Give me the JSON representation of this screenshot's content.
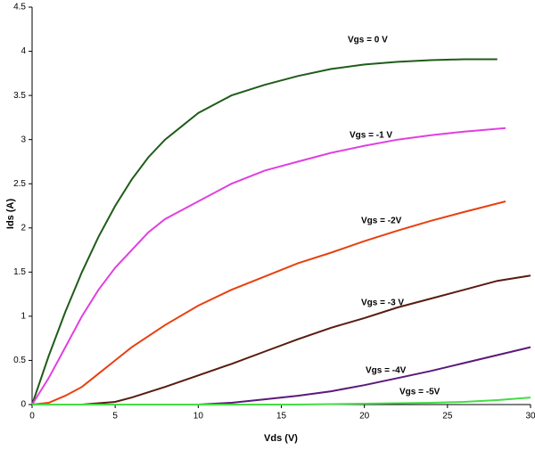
{
  "chart_data": {
    "type": "line",
    "x_label": "Vds (V)",
    "y_label": "Ids (A)",
    "xlim": [
      0,
      30
    ],
    "ylim": [
      0,
      4.5
    ],
    "xticks": [
      0,
      5,
      10,
      15,
      20,
      25,
      30
    ],
    "yticks": [
      0,
      0.5,
      1,
      1.5,
      2,
      2.5,
      3,
      3.5,
      4,
      4.5
    ],
    "series": [
      {
        "name": "Vgs = 0 V",
        "color": "#1f5c1a",
        "x": [
          0,
          1,
          2,
          3,
          4,
          5,
          6,
          7,
          8,
          9,
          10,
          12,
          14,
          16,
          18,
          20,
          22,
          24,
          26,
          28
        ],
        "values": [
          0,
          0.55,
          1.05,
          1.5,
          1.9,
          2.25,
          2.55,
          2.8,
          3.0,
          3.15,
          3.3,
          3.5,
          3.62,
          3.72,
          3.8,
          3.85,
          3.88,
          3.9,
          3.91,
          3.91
        ]
      },
      {
        "name": "Vgs = -1 V",
        "color": "#e040e0",
        "x": [
          0,
          1,
          2,
          3,
          4,
          5,
          6,
          7,
          8,
          10,
          12,
          14,
          16,
          18,
          20,
          22,
          24,
          26,
          28.5
        ],
        "values": [
          0,
          0.3,
          0.65,
          1.0,
          1.3,
          1.55,
          1.75,
          1.95,
          2.1,
          2.3,
          2.5,
          2.65,
          2.75,
          2.85,
          2.93,
          3.0,
          3.05,
          3.09,
          3.13
        ]
      },
      {
        "name": "Vgs = -2V",
        "color": "#e8400f",
        "x": [
          0,
          1,
          2,
          3,
          4,
          5,
          6,
          8,
          10,
          12,
          14,
          16,
          18,
          20,
          22,
          24,
          26,
          28.5
        ],
        "values": [
          0,
          0.02,
          0.1,
          0.2,
          0.35,
          0.5,
          0.65,
          0.9,
          1.12,
          1.3,
          1.45,
          1.6,
          1.72,
          1.85,
          1.97,
          2.08,
          2.18,
          2.3
        ]
      },
      {
        "name": "Vgs = -3 V",
        "color": "#5a1a10",
        "x": [
          0,
          3,
          5,
          6,
          8,
          10,
          12,
          14,
          16,
          18,
          20,
          22,
          24,
          26,
          28,
          30
        ],
        "values": [
          0,
          0,
          0.03,
          0.08,
          0.2,
          0.33,
          0.46,
          0.6,
          0.74,
          0.87,
          0.98,
          1.1,
          1.2,
          1.3,
          1.4,
          1.46
        ]
      },
      {
        "name": "Vgs = -4V",
        "color": "#5a1a7a",
        "x": [
          0,
          10,
          12,
          14,
          16,
          18,
          20,
          22,
          24,
          26,
          28,
          30
        ],
        "values": [
          0,
          0,
          0.02,
          0.06,
          0.1,
          0.15,
          0.22,
          0.3,
          0.38,
          0.47,
          0.56,
          0.65
        ]
      },
      {
        "name": "Vgs = -5V",
        "color": "#44dd44",
        "x": [
          0,
          16,
          18,
          20,
          22,
          24,
          26,
          28,
          30
        ],
        "values": [
          0,
          0,
          0.005,
          0.01,
          0.015,
          0.02,
          0.03,
          0.05,
          0.08
        ]
      }
    ]
  }
}
